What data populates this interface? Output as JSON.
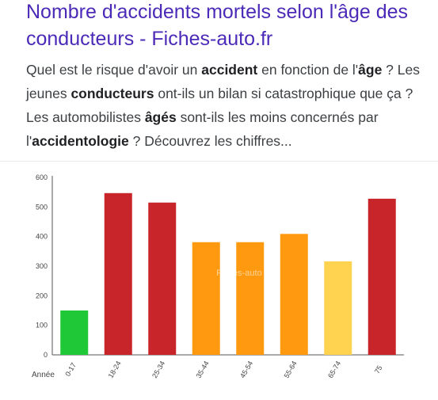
{
  "result": {
    "title": "Nombre d'accidents mortels selon l'âge des conducteurs - Fiches-auto.fr",
    "snippet": [
      {
        "text": "Quel est le risque d'avoir un ",
        "bold": false
      },
      {
        "text": "accident",
        "bold": true
      },
      {
        "text": " en fonction de l'",
        "bold": false
      },
      {
        "text": "âge",
        "bold": true
      },
      {
        "text": " ? Les jeunes ",
        "bold": false
      },
      {
        "text": "conducteurs",
        "bold": true
      },
      {
        "text": " ont-ils un bilan si catastrophique que ça ? Les automobilistes ",
        "bold": false
      },
      {
        "text": "âgés",
        "bold": true
      },
      {
        "text": " sont-ils les moins concernés par l'",
        "bold": false
      },
      {
        "text": "accidentologie",
        "bold": true
      },
      {
        "text": " ? Découvrez les chiffres...",
        "bold": false
      }
    ]
  },
  "chart_data": {
    "type": "bar",
    "categories": [
      "0-17",
      "18-24",
      "25-34",
      "35-44",
      "45-54",
      "55-64",
      "65-74",
      "75"
    ],
    "category_labels_visible": [
      "0-17",
      "18-24",
      "25-34",
      "35-44",
      "45-54",
      "55-64",
      "65-74",
      "75"
    ],
    "values": [
      150,
      547,
      515,
      381,
      381,
      409,
      316,
      528
    ],
    "bar_colors": [
      "#1ec837",
      "#c8252a",
      "#c8252a",
      "#ff9a10",
      "#ff9a10",
      "#ff9a10",
      "#ffd250",
      "#c8252a"
    ],
    "xlabel": "Année",
    "ylabel": "",
    "ylim": [
      0,
      600
    ],
    "yticks": [
      0,
      100,
      200,
      300,
      400,
      500,
      600
    ],
    "grid": false,
    "watermark": "Fiches-auto"
  }
}
